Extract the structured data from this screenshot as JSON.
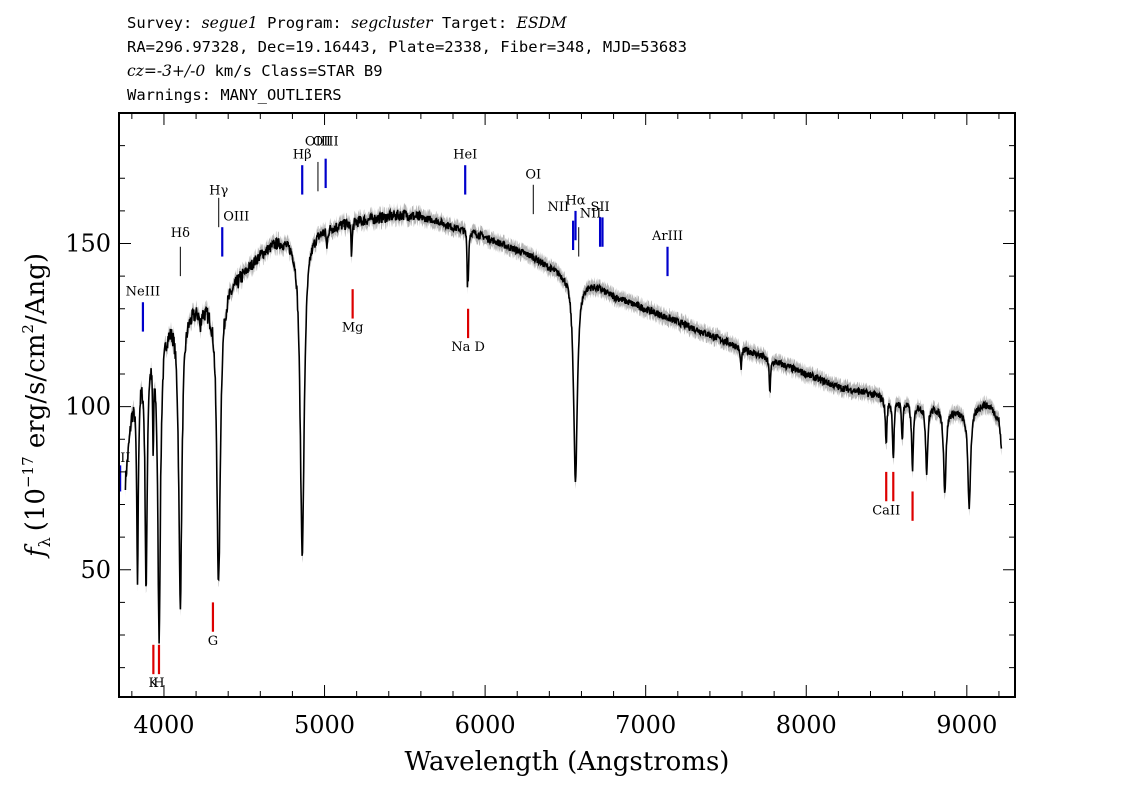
{
  "header": {
    "line1": {
      "survey_label": "Survey: ",
      "survey": "segue1",
      "program_label": " Program: ",
      "program": "segcluster",
      "target_label": " Target: ",
      "target": "ESDM"
    },
    "line2": "RA=296.97328, Dec=19.16443, Plate=2338, Fiber=348, MJD=53683",
    "line3": {
      "cz": "cz=-3+/-0",
      "rest": " km/s Class=STAR B9"
    },
    "line4": "Warnings: MANY_OUTLIERS"
  },
  "chart_data": {
    "type": "line",
    "xlabel": "Wavelength (Angstroms)",
    "ylabel": "f_λ (10^-17 erg/s/cm^2/Ang)",
    "ylabel_parts": {
      "f": "f",
      "sub": "λ",
      "pre": "(10",
      "exp1": "−17",
      "mid": " erg/s/cm",
      "exp2": "2",
      "post": "/Ang)"
    },
    "xlim": [
      3720,
      9300
    ],
    "ylim": [
      11,
      190
    ],
    "x_ticks": [
      4000,
      5000,
      6000,
      7000,
      8000,
      9000
    ],
    "y_ticks": [
      50,
      100,
      150
    ],
    "colors": {
      "spectrum": "#000000",
      "error_band": "#b4b4b4",
      "emission": "#0000cc",
      "absorption": "#dd0000"
    },
    "continuum_knots": [
      [
        3760,
        78
      ],
      [
        3800,
        100
      ],
      [
        3850,
        112
      ],
      [
        3900,
        120
      ],
      [
        3980,
        124
      ],
      [
        4050,
        128
      ],
      [
        4150,
        130
      ],
      [
        4300,
        132
      ],
      [
        4450,
        139
      ],
      [
        4600,
        147
      ],
      [
        4700,
        151
      ],
      [
        4800,
        152
      ],
      [
        4900,
        153
      ],
      [
        5000,
        155
      ],
      [
        5100,
        156
      ],
      [
        5200,
        157
      ],
      [
        5350,
        158
      ],
      [
        5500,
        159
      ],
      [
        5600,
        158
      ],
      [
        5700,
        157
      ],
      [
        5800,
        155
      ],
      [
        5900,
        154
      ],
      [
        6000,
        152
      ],
      [
        6100,
        150
      ],
      [
        6200,
        148
      ],
      [
        6300,
        146
      ],
      [
        6400,
        143
      ],
      [
        6500,
        141
      ],
      [
        6600,
        139
      ],
      [
        6700,
        137
      ],
      [
        6800,
        134
      ],
      [
        6900,
        132
      ],
      [
        7000,
        130
      ],
      [
        7100,
        128
      ],
      [
        7200,
        126
      ],
      [
        7300,
        124
      ],
      [
        7400,
        122
      ],
      [
        7500,
        120
      ],
      [
        7600,
        118
      ],
      [
        7700,
        116
      ],
      [
        7800,
        114
      ],
      [
        7900,
        112
      ],
      [
        8000,
        110
      ],
      [
        8100,
        108
      ],
      [
        8200,
        106
      ],
      [
        8300,
        105
      ],
      [
        8400,
        104
      ],
      [
        8500,
        103
      ],
      [
        8600,
        102
      ],
      [
        8700,
        101
      ],
      [
        8800,
        100
      ],
      [
        8900,
        99
      ],
      [
        9000,
        98
      ],
      [
        9100,
        101
      ],
      [
        9150,
        100
      ],
      [
        9200,
        96
      ],
      [
        9215,
        88
      ]
    ],
    "absorption_features": [
      {
        "center": 3835,
        "depth": 60,
        "width": 6
      },
      {
        "center": 3889,
        "depth": 72,
        "width": 8
      },
      {
        "center": 3933,
        "depth": 28,
        "width": 4
      },
      {
        "center": 3970,
        "depth": 92,
        "width": 10
      },
      {
        "center": 4102,
        "depth": 88,
        "width": 12
      },
      {
        "center": 4226,
        "depth": 6,
        "width": 4
      },
      {
        "center": 4340,
        "depth": 88,
        "width": 13
      },
      {
        "center": 4861,
        "depth": 97,
        "width": 15
      },
      {
        "center": 5015,
        "depth": 6,
        "width": 4
      },
      {
        "center": 5169,
        "depth": 10,
        "width": 4
      },
      {
        "center": 5890,
        "depth": 14,
        "width": 3
      },
      {
        "center": 5896,
        "depth": 12,
        "width": 3
      },
      {
        "center": 6563,
        "depth": 63,
        "width": 14
      },
      {
        "center": 7594,
        "depth": 6,
        "width": 6
      },
      {
        "center": 7774,
        "depth": 10,
        "width": 5
      },
      {
        "center": 8498,
        "depth": 14,
        "width": 6
      },
      {
        "center": 8542,
        "depth": 18,
        "width": 6
      },
      {
        "center": 8598,
        "depth": 12,
        "width": 5
      },
      {
        "center": 8662,
        "depth": 20,
        "width": 7
      },
      {
        "center": 8750,
        "depth": 20,
        "width": 8
      },
      {
        "center": 8863,
        "depth": 25,
        "width": 9
      },
      {
        "center": 9015,
        "depth": 29,
        "width": 10
      }
    ],
    "line_markers": [
      {
        "label": "OII",
        "x": 3727,
        "y1": 74,
        "y2": 82,
        "label_y": 83,
        "color": "emission",
        "label_pos": "above"
      },
      {
        "label": "NeIII",
        "x": 3869,
        "y1": 123,
        "y2": 132,
        "label_y": 134,
        "color": "emission",
        "label_pos": "above"
      },
      {
        "label": "Hδ",
        "x": 4102,
        "y1": 140,
        "y2": 149,
        "label_y": 152,
        "color": "neutral",
        "label_pos": "above"
      },
      {
        "label": "Hγ",
        "x": 4341,
        "y1": 155,
        "y2": 164,
        "label_y": 165,
        "color": "neutral",
        "label_pos": "above"
      },
      {
        "label": "OIII",
        "x": 4363,
        "y1": 146,
        "y2": 155,
        "label_y": 157,
        "color": "emission",
        "label_pos": "right"
      },
      {
        "label": "Hβ",
        "x": 4861,
        "y1": 165,
        "y2": 174,
        "label_y": 176,
        "color": "emission",
        "label_pos": "above"
      },
      {
        "label": "OIII",
        "x": 4959,
        "y1": 166,
        "y2": 175,
        "label_y": 180,
        "color": "neutral",
        "label_pos": "above"
      },
      {
        "label": "OIII",
        "x": 5007,
        "y1": 167,
        "y2": 176,
        "label_y": 180,
        "color": "emission",
        "label_pos": "above"
      },
      {
        "label": "HeI",
        "x": 5876,
        "y1": 165,
        "y2": 174,
        "label_y": 176,
        "color": "emission",
        "label_pos": "above"
      },
      {
        "label": "OI",
        "x": 6300,
        "y1": 159,
        "y2": 168,
        "label_y": 170,
        "color": "neutral",
        "label_pos": "above"
      },
      {
        "label": "NII",
        "x": 6548,
        "y1": 148,
        "y2": 157,
        "label_y": 160,
        "color": "emission",
        "label_pos": "left"
      },
      {
        "label": "Hα",
        "x": 6563,
        "y1": 151,
        "y2": 160,
        "label_y": 162,
        "color": "emission",
        "label_pos": "above"
      },
      {
        "label": "NII",
        "x": 6583,
        "y1": 146,
        "y2": 155,
        "label_y": 158,
        "color": "neutral",
        "label_pos": "right"
      },
      {
        "label": "SII",
        "x": 6716,
        "y1": 149,
        "y2": 158,
        "label_y": 160,
        "color": "emission",
        "label_pos": "above"
      },
      {
        "label": "SII",
        "x": 6731,
        "y1": 149,
        "y2": 158,
        "label_y": 160,
        "color": "emission",
        "label_pos": "none"
      },
      {
        "label": "ArIII",
        "x": 7136,
        "y1": 140,
        "y2": 149,
        "label_y": 151,
        "color": "emission",
        "label_pos": "above"
      },
      {
        "label": "K",
        "x": 3934,
        "y1": 18,
        "y2": 27,
        "label_y": 14,
        "color": "absorption",
        "label_pos": "below"
      },
      {
        "label": "H",
        "x": 3969,
        "y1": 18,
        "y2": 27,
        "label_y": 14,
        "color": "absorption",
        "label_pos": "below"
      },
      {
        "label": "G",
        "x": 4305,
        "y1": 31,
        "y2": 40,
        "label_y": 27,
        "color": "absorption",
        "label_pos": "below"
      },
      {
        "label": "Mg",
        "x": 5175,
        "y1": 127,
        "y2": 136,
        "label_y": 123,
        "color": "absorption",
        "label_pos": "below"
      },
      {
        "label": "Na D",
        "x": 5894,
        "y1": 121,
        "y2": 130,
        "label_y": 117,
        "color": "absorption",
        "label_pos": "below"
      },
      {
        "label": "CaII",
        "x": 8498,
        "y1": 71,
        "y2": 80,
        "label_y": 67,
        "color": "absorption",
        "label_pos": "below"
      },
      {
        "label": "CaII",
        "x": 8542,
        "y1": 71,
        "y2": 80,
        "label_y": 67,
        "color": "absorption",
        "label_pos": "none"
      },
      {
        "label": "CaII",
        "x": 8662,
        "y1": 65,
        "y2": 74,
        "label_y": 61,
        "color": "absorption",
        "label_pos": "none"
      }
    ]
  }
}
